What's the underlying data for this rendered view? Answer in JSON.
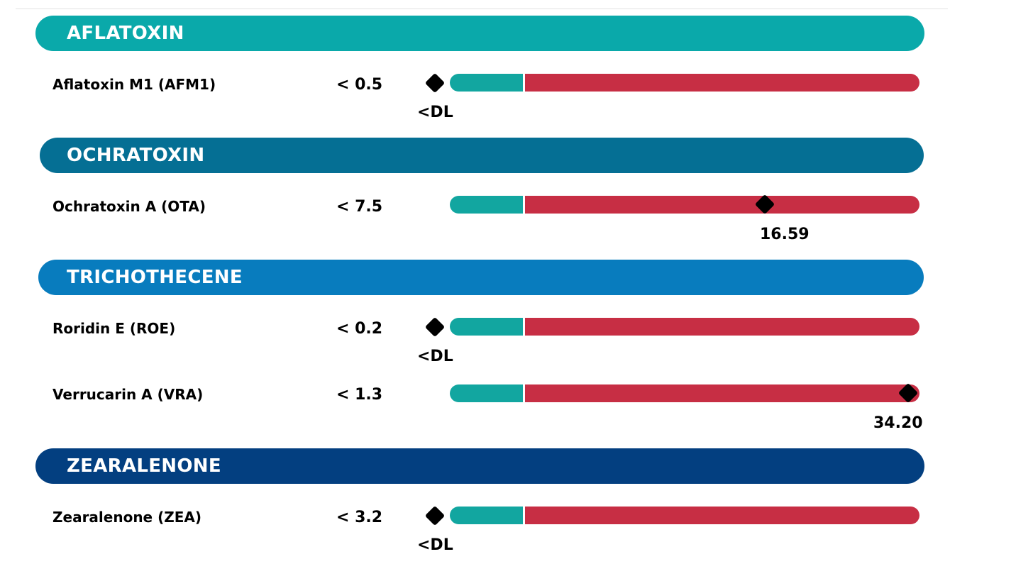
{
  "colors": {
    "safe": "#12a6a0",
    "elevated": "#c72e44",
    "marker": "#000000"
  },
  "sections": [
    {
      "title": "AFLATOXIN",
      "color": "#0aa9aa",
      "analytes": [
        {
          "name": "Aflatoxin M1 (AFM1)",
          "limit": "< 0.5",
          "result_label": "<DL",
          "result_value": null,
          "below_detection": true
        }
      ]
    },
    {
      "title": "OCHRATOXIN",
      "color": "#056f94",
      "analytes": [
        {
          "name": "Ochratoxin A (OTA)",
          "limit": "< 7.5",
          "result_label": "16.59",
          "result_value": 16.59,
          "below_detection": false
        }
      ]
    },
    {
      "title": "TRICHOTHECENE",
      "color": "#087cbe",
      "analytes": [
        {
          "name": "Roridin E (ROE)",
          "limit": "< 0.2",
          "result_label": "<DL",
          "result_value": null,
          "below_detection": true
        },
        {
          "name": "Verrucarin A (VRA)",
          "limit": "< 1.3",
          "result_label": "34.20",
          "result_value": 34.2,
          "below_detection": false
        }
      ]
    },
    {
      "title": "ZEARALENONE",
      "color": "#033f80",
      "analytes": [
        {
          "name": "Zearalenone (ZEA)",
          "limit": "< 3.2",
          "result_label": "<DL",
          "result_value": null,
          "below_detection": true
        }
      ]
    }
  ]
}
